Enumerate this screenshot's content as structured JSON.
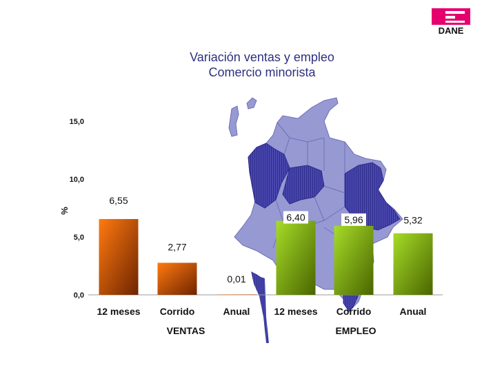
{
  "logo": {
    "text": "DANE",
    "color": "#e5006d"
  },
  "title": {
    "line1": "Variación ventas y empleo",
    "line2": "Comercio minorista"
  },
  "chart_data": {
    "type": "bar",
    "title": "Variación ventas y empleo Comercio minorista",
    "ylabel": "%",
    "ylim": [
      0,
      15
    ],
    "yticks": [
      "0,0",
      "5,0",
      "10,0",
      "15,0"
    ],
    "yticks_values": [
      0,
      5,
      10,
      15
    ],
    "categories": [
      "12 meses",
      "Corrido",
      "Anual",
      "12 meses",
      "Corrido",
      "Anual"
    ],
    "values": [
      6.55,
      2.77,
      0.01,
      6.4,
      5.96,
      5.32
    ],
    "value_labels": [
      "6,55",
      "2,77",
      "0,01",
      "6,40",
      "5,96",
      "5,32"
    ],
    "groups": [
      {
        "name": "VENTAS",
        "indices": [
          0,
          1,
          2
        ]
      },
      {
        "name": "EMPLEO",
        "indices": [
          3,
          4,
          5
        ]
      }
    ],
    "colors": {
      "ventas_top": "#ff6a00",
      "ventas_bottom": "#7a2a00",
      "empleo_top": "#99d21c",
      "empleo_bottom": "#4e6b00",
      "map_fill": "#9799d3",
      "map_dark": "#3d3aa3"
    },
    "grid": false,
    "legend": "none",
    "background": "map of Colombia"
  }
}
